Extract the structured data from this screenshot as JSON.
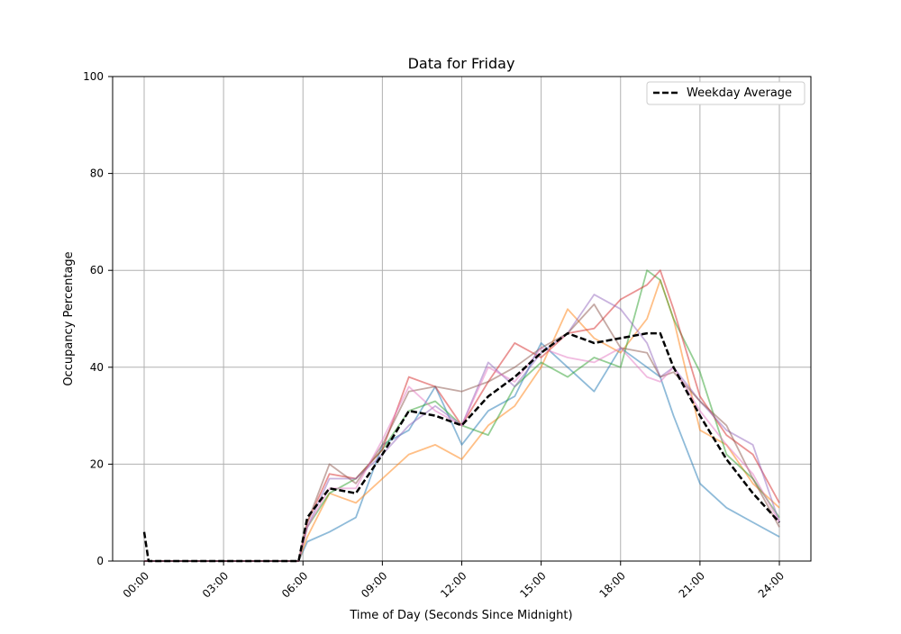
{
  "chart_data": {
    "type": "line",
    "title": "Data for Friday",
    "xlabel": "Time of Day (Seconds Since Midnight)",
    "ylabel": "Occupancy Percentage",
    "ylim": [
      0,
      100
    ],
    "yticks": [
      "0",
      "20",
      "40",
      "60",
      "80",
      "100"
    ],
    "xticks": [
      "00:00",
      "03:00",
      "06:00",
      "09:00",
      "12:00",
      "15:00",
      "18:00",
      "21:00",
      "24:00"
    ],
    "grid": true,
    "legend_placement": "upper-right",
    "x": [
      "00:00",
      "00:10",
      "03:00",
      "05:50",
      "06:10",
      "07:00",
      "08:00",
      "09:00",
      "10:00",
      "11:00",
      "12:00",
      "13:00",
      "14:00",
      "15:00",
      "16:00",
      "17:00",
      "18:00",
      "19:00",
      "19:30",
      "20:00",
      "21:00",
      "22:00",
      "23:00",
      "24:00"
    ],
    "series": [
      {
        "color": "#1f77b4",
        "values": [
          0,
          0,
          0,
          0,
          4,
          6,
          9,
          24,
          27,
          36,
          24,
          31,
          34,
          45,
          40,
          35,
          44,
          40,
          38,
          30,
          16,
          11,
          8,
          5
        ]
      },
      {
        "color": "#ff7f0e",
        "values": [
          0,
          0,
          0,
          0,
          5,
          14,
          12,
          17,
          22,
          24,
          21,
          28,
          32,
          40,
          52,
          46,
          43,
          50,
          58,
          50,
          27,
          24,
          16,
          11
        ]
      },
      {
        "color": "#2ca02c",
        "values": [
          0,
          0,
          0,
          0,
          7,
          14,
          17,
          23,
          31,
          33,
          28,
          26,
          36,
          41,
          38,
          42,
          40,
          60,
          58,
          50,
          39,
          22,
          17,
          9
        ]
      },
      {
        "color": "#d62728",
        "values": [
          0,
          0,
          0,
          0,
          8,
          18,
          17,
          23,
          38,
          36,
          28,
          37,
          45,
          42,
          47,
          48,
          54,
          57,
          60,
          52,
          34,
          26,
          22,
          12
        ]
      },
      {
        "color": "#9467bd",
        "values": [
          0,
          0,
          0,
          0,
          7,
          17,
          17,
          22,
          28,
          32,
          28,
          41,
          36,
          43,
          47,
          55,
          52,
          45,
          38,
          40,
          33,
          27,
          24,
          8
        ]
      },
      {
        "color": "#8c564b",
        "values": [
          0,
          0,
          0,
          0,
          8,
          20,
          16,
          24,
          35,
          36,
          35,
          37,
          40,
          44,
          47,
          53,
          44,
          43,
          38,
          39,
          33,
          28,
          17,
          7
        ]
      },
      {
        "color": "#e377c2",
        "values": [
          0,
          0,
          0,
          0,
          7,
          15,
          15,
          25,
          36,
          31,
          28,
          40,
          37,
          44,
          42,
          41,
          44,
          38,
          37,
          40,
          31,
          24,
          18,
          8
        ]
      },
      {
        "name": "Weekday Average",
        "color": "#000000",
        "dashed": true,
        "values": [
          6,
          0,
          0,
          0,
          9,
          15,
          14,
          22,
          31,
          30,
          28,
          34,
          38,
          43,
          47,
          45,
          46,
          47,
          47,
          40,
          30,
          21,
          14,
          8
        ]
      }
    ]
  }
}
